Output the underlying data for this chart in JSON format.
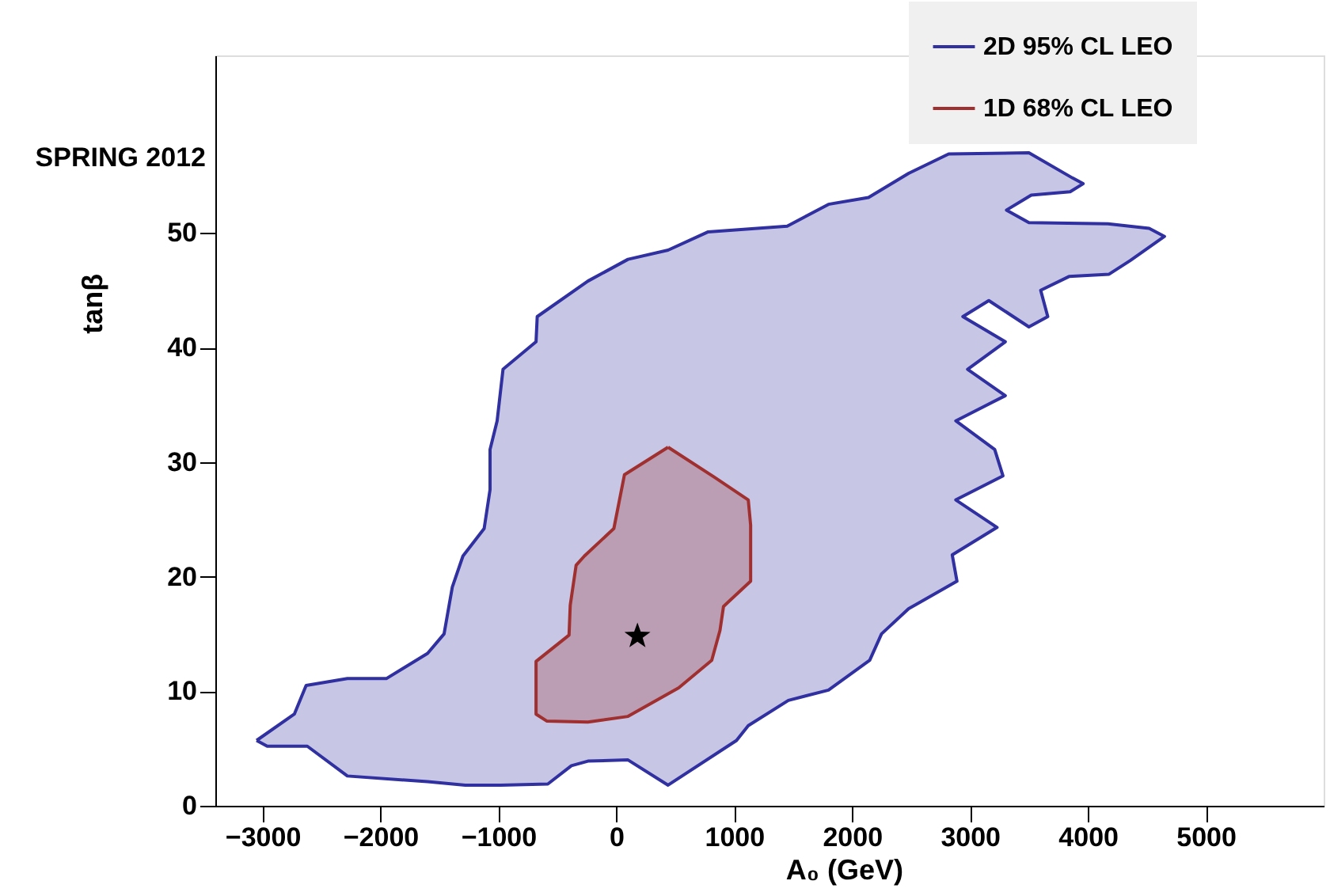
{
  "chart_data": {
    "type": "area",
    "xlabel": "A₀ (GeV)",
    "ylabel": "tanβ",
    "annotations": [
      "SPRING 2012"
    ],
    "xlim": [
      -3400,
      6000
    ],
    "xticks": [
      -3000,
      -2000,
      -1000,
      0,
      1000,
      2000,
      3000,
      4000,
      5000
    ],
    "ylim": [
      0,
      65.5
    ],
    "yticks": [
      0,
      10,
      20,
      30,
      40,
      50
    ],
    "grid": false,
    "legend": "top right",
    "series": [
      {
        "name": "2D 95% CL LEO",
        "color": "#3030a0",
        "x": [
          -3050,
          -2730,
          -2630,
          -2280,
          -1950,
          -1600,
          -1460,
          -1390,
          -1300,
          -1120,
          -1070,
          -1070,
          -1010,
          -960,
          -680,
          -670,
          -240,
          100,
          440,
          780,
          1450,
          1800,
          2140,
          2480,
          2820,
          3500,
          3870,
          3960,
          3850,
          3520,
          3310,
          3500,
          4170,
          4520,
          4650,
          4360,
          4180,
          3840,
          3600,
          3660,
          3500,
          3160,
          2940,
          3300,
          2980,
          3300,
          2880,
          3210,
          3280,
          2880,
          3230,
          2850,
          2890,
          2480,
          2250,
          2150,
          1800,
          1460,
          1120,
          1020,
          440,
          100,
          -240,
          -380,
          -580,
          -980,
          -1280,
          -1600,
          -2280,
          -2620,
          -2960,
          -3050
        ],
        "values": [
          5.7,
          8.0,
          10.5,
          11.1,
          11.1,
          13.3,
          15.0,
          19.1,
          21.8,
          24.2,
          27.6,
          31.1,
          33.6,
          38.1,
          40.5,
          42.7,
          45.8,
          47.7,
          48.5,
          50.1,
          50.6,
          52.5,
          53.1,
          55.2,
          56.9,
          57.0,
          54.8,
          54.3,
          53.6,
          53.3,
          52.0,
          50.9,
          50.8,
          50.4,
          49.7,
          47.6,
          46.4,
          46.2,
          45.0,
          42.7,
          41.8,
          44.1,
          42.7,
          40.5,
          38.1,
          35.8,
          33.6,
          31.1,
          28.8,
          26.7,
          24.3,
          21.9,
          19.6,
          17.2,
          15.0,
          12.7,
          10.1,
          9.2,
          7.0,
          5.7,
          1.8,
          4.0,
          3.9,
          3.5,
          1.9,
          1.8,
          1.8,
          2.1,
          2.6,
          5.2,
          5.2,
          5.7
        ]
      },
      {
        "name": "1D 68% CL LEO",
        "color": "#a03030",
        "x": [
          440,
          830,
          1120,
          1140,
          1140,
          910,
          880,
          810,
          530,
          100,
          -240,
          -590,
          -680,
          -680,
          -400,
          -390,
          -340,
          -270,
          -20,
          70,
          440
        ],
        "values": [
          31.3,
          28.7,
          26.7,
          24.5,
          19.6,
          17.4,
          15.3,
          12.7,
          10.3,
          7.8,
          7.3,
          7.4,
          8.0,
          12.6,
          14.9,
          17.5,
          21.0,
          21.8,
          24.2,
          28.9,
          31.3
        ]
      },
      {
        "type": "scatter",
        "marker": "star",
        "color": "#000000",
        "x": [
          180
        ],
        "values": [
          14.8
        ]
      }
    ]
  }
}
